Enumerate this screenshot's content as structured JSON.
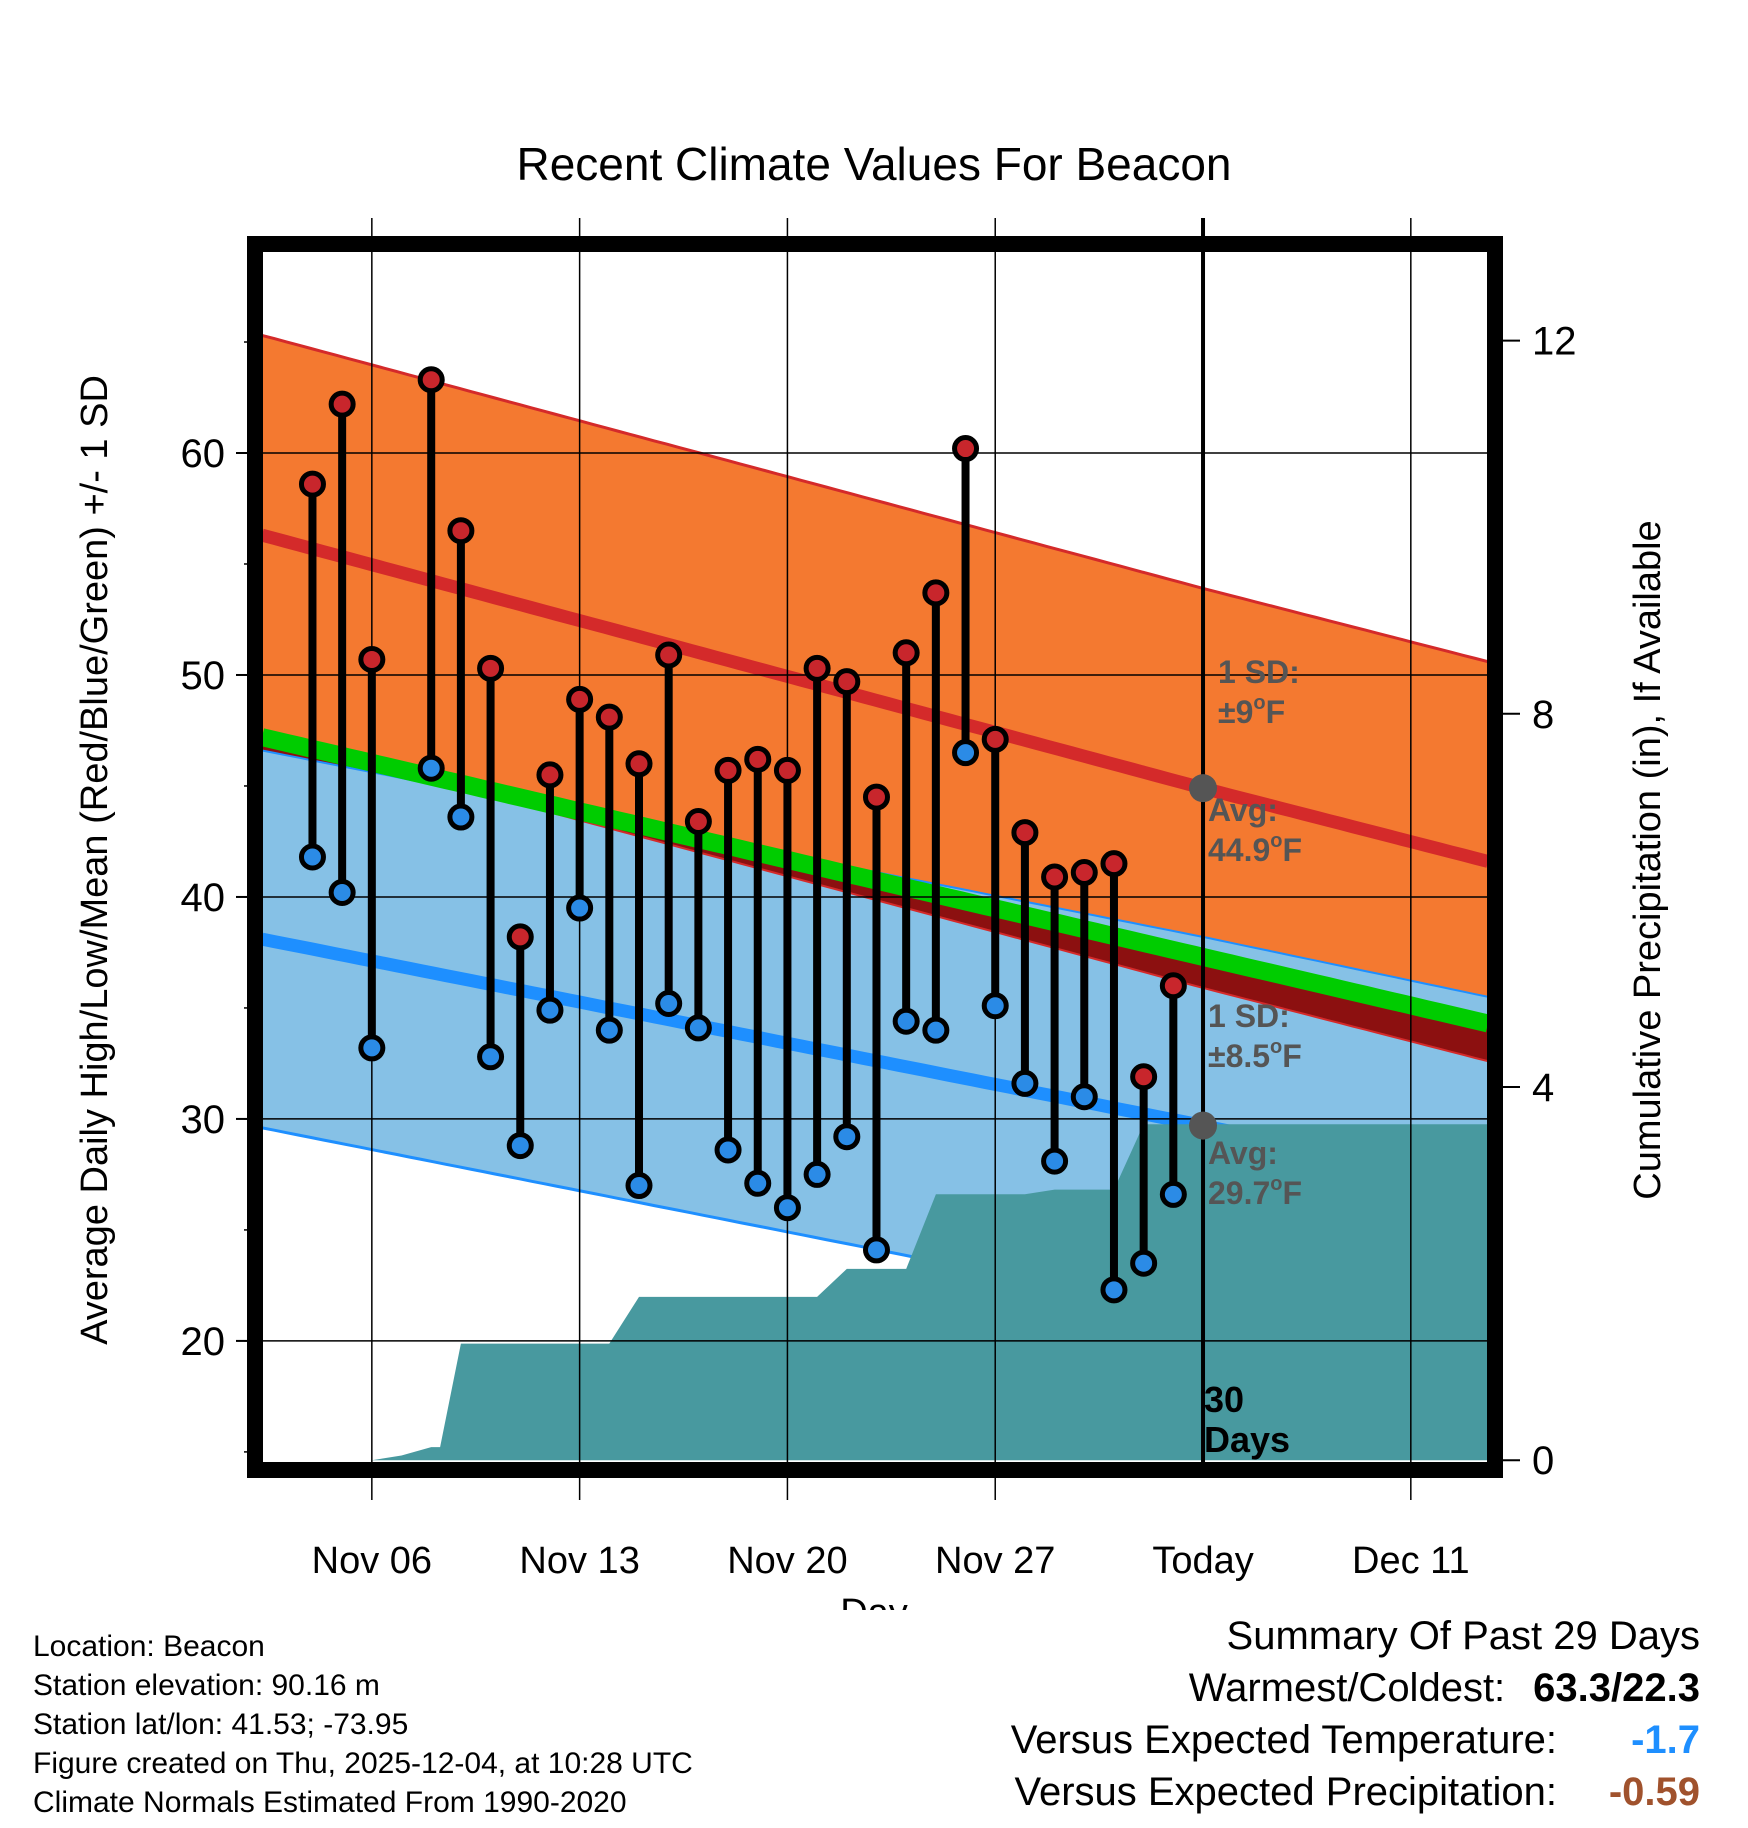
{
  "chart_data": {
    "type": "line",
    "title": "Recent Climate Values For Beacon",
    "xlabel": "Day",
    "ylabel": "Average Daily High/Low/Mean (Red/Blue/Green) +/- 1 SD",
    "y2label": "Cumulative Precipitation (in), If Available",
    "xlim": [
      2.3,
      43.6
    ],
    "ylim": [
      14.5,
      69.1
    ],
    "y2lim": [
      -0.03,
      12.96
    ],
    "x_ticks": [
      {
        "x": 6,
        "label": "Nov 06"
      },
      {
        "x": 13,
        "label": "Nov 13"
      },
      {
        "x": 20,
        "label": "Nov 20"
      },
      {
        "x": 27,
        "label": "Nov 27"
      },
      {
        "x": 34,
        "label": "Today"
      },
      {
        "x": 41,
        "label": "Dec 11"
      }
    ],
    "y_ticks": [
      20,
      30,
      40,
      50,
      60
    ],
    "y2_ticks": [
      0,
      4,
      8,
      12
    ],
    "grid": true,
    "normals": {
      "days": [
        2.3,
        34,
        43.6
      ],
      "high_avg": [
        56.3,
        44.9,
        41.6
      ],
      "high_sd": 9,
      "low_avg": [
        38.1,
        29.7,
        27.0
      ],
      "low_sd": 8.5,
      "mean_avg": [
        47.2,
        37.3,
        34.3
      ]
    },
    "series": [
      {
        "name": "Daily High",
        "x": [
          4,
          5,
          6,
          7,
          8,
          9,
          10,
          11,
          12,
          13,
          14,
          15,
          16,
          17,
          18,
          19,
          20,
          21,
          22,
          23,
          24,
          25,
          26,
          27,
          28,
          29,
          30,
          31,
          32,
          33
        ],
        "values": [
          58.6,
          62.2,
          50.7,
          null,
          63.3,
          56.5,
          50.3,
          38.2,
          45.5,
          48.9,
          48.1,
          46.0,
          50.9,
          43.4,
          45.7,
          46.2,
          45.7,
          50.3,
          49.7,
          44.5,
          51.0,
          53.7,
          60.2,
          47.1,
          42.9,
          40.9,
          41.1,
          41.5,
          31.9,
          36.0
        ]
      },
      {
        "name": "Daily Low",
        "x": [
          4,
          5,
          6,
          7,
          8,
          9,
          10,
          11,
          12,
          13,
          14,
          15,
          16,
          17,
          18,
          19,
          20,
          21,
          22,
          23,
          24,
          25,
          26,
          27,
          28,
          29,
          30,
          31,
          32,
          33
        ],
        "values": [
          41.8,
          40.2,
          33.2,
          null,
          45.8,
          43.6,
          32.8,
          28.8,
          34.9,
          39.5,
          34.0,
          27.0,
          35.2,
          34.1,
          28.6,
          27.1,
          26.0,
          27.5,
          29.2,
          24.1,
          34.4,
          34.0,
          46.5,
          35.1,
          31.6,
          28.1,
          31.0,
          22.3,
          23.5,
          26.6
        ]
      },
      {
        "name": "Cumulative Precipitation",
        "x": [
          2.3,
          3,
          4,
          5,
          6,
          7,
          8,
          8.3,
          9,
          10,
          11,
          12,
          13,
          14,
          15,
          16,
          17,
          18,
          19,
          20,
          21,
          22,
          23,
          24,
          25,
          26,
          27,
          28,
          29,
          30,
          31,
          32,
          33,
          34,
          43.6
        ],
        "values": [
          0,
          0,
          0,
          0,
          0,
          0.05,
          0.14,
          0.14,
          1.25,
          1.25,
          1.25,
          1.25,
          1.25,
          1.25,
          1.75,
          1.75,
          1.75,
          1.75,
          1.75,
          1.75,
          1.75,
          2.05,
          2.05,
          2.05,
          2.85,
          2.85,
          2.85,
          2.85,
          2.9,
          2.9,
          2.9,
          3.6,
          3.6,
          3.6,
          3.6
        ]
      }
    ],
    "annotations": [
      {
        "label": "1 SD:",
        "value": "±9",
        "unit": "oF"
      },
      {
        "label": "Avg:",
        "value": "44.9",
        "unit": "oF"
      },
      {
        "label": "1 SD:",
        "value": "±8.5",
        "unit": "oF"
      },
      {
        "label": "Avg:",
        "value": "29.7",
        "unit": "oF"
      },
      {
        "label": "30",
        "value": "Days"
      }
    ],
    "colors": {
      "high_band": "#f47930",
      "high_line": "#d42a2a",
      "low_band": "#86c1e6",
      "low_line": "#1e8fff",
      "mean_band": "#00cc00",
      "overlap": "#8c1010",
      "precip": "#48999f",
      "annotation": "#555555",
      "high_dot": "#c8262c",
      "low_dot": "#2b8be6"
    }
  },
  "info": {
    "location": "Location: Beacon",
    "elevation": "Station elevation: 90.16 m",
    "latlon": "Station lat/lon: 41.53; -73.95",
    "created": "Figure created on Thu, 2025-12-04, at 10:28 UTC",
    "normals": "Climate Normals Estimated From 1990-2020"
  },
  "summary": {
    "title": "Summary Of Past 29 Days",
    "warm_cold_label": "Warmest/Coldest:",
    "warm_cold_value": "63.3/22.3",
    "temp_label": "Versus Expected Temperature:",
    "temp_value": "-1.7",
    "temp_color": "#1e8fff",
    "precip_label": "Versus Expected Precipitation:",
    "precip_value": "-0.59",
    "precip_color": "#a0522d"
  }
}
